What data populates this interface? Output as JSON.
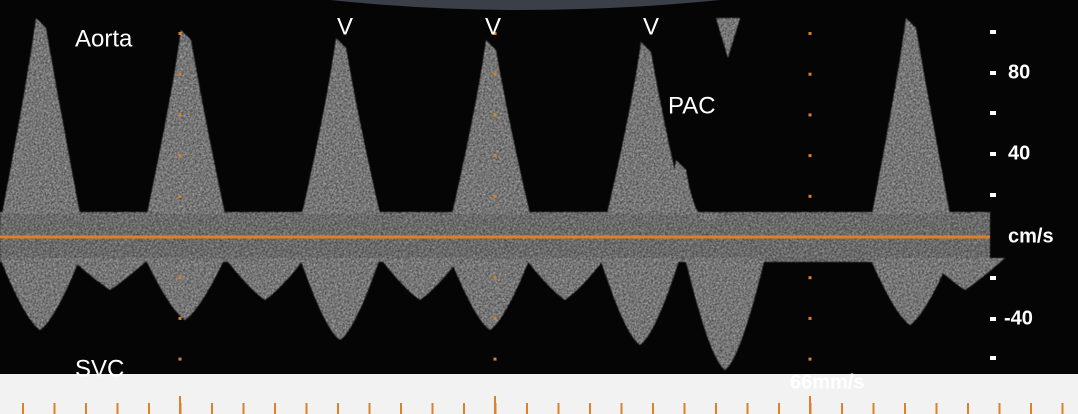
{
  "labels": {
    "top_left": "Aorta",
    "bottom_left": "SVC",
    "peaks": [
      "V",
      "V",
      "V"
    ],
    "pac": "PAC",
    "sweep_speed": "66mm/s"
  },
  "scale": {
    "labels": [
      "80",
      "40",
      "cm/s",
      "-40"
    ]
  }
}
